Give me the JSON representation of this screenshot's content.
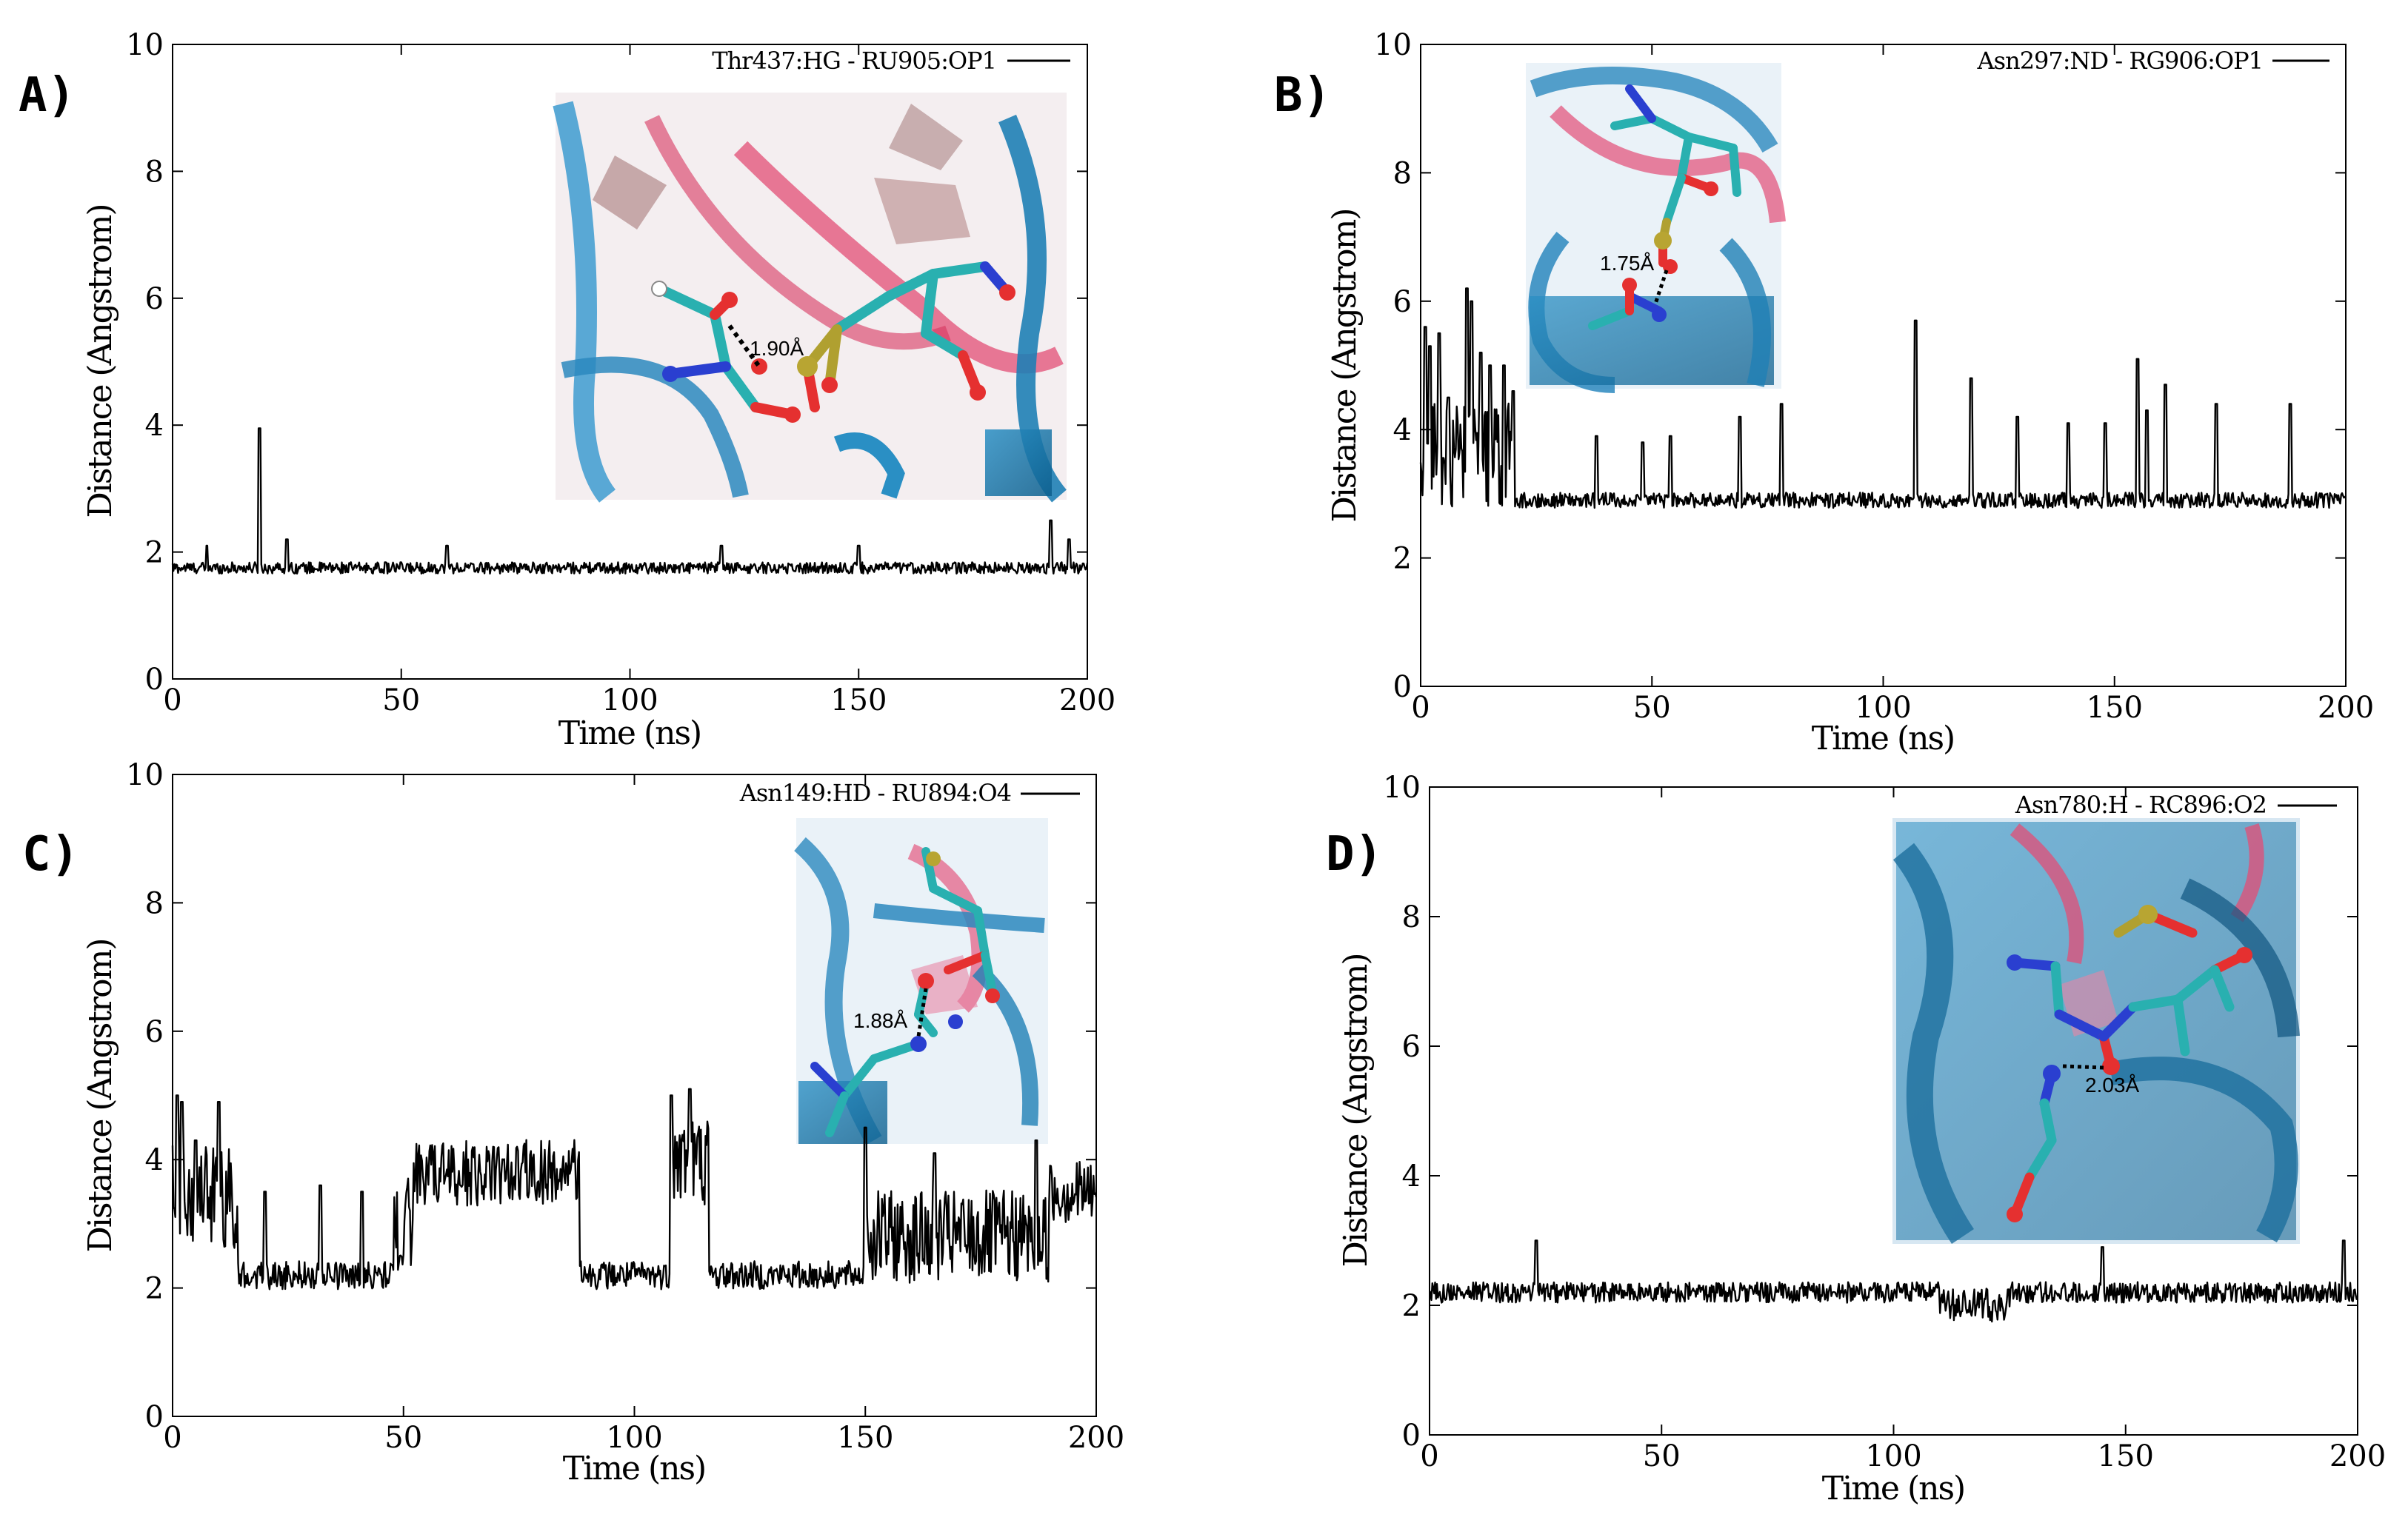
{
  "chart_data": [
    {
      "type": "line",
      "panel_label": "A)",
      "xlabel": "Time (ns)",
      "ylabel": "Distance (Angstrom)",
      "xlim": [
        0,
        200
      ],
      "ylim": [
        0,
        10
      ],
      "xticks": [
        "0",
        "50",
        "100",
        "150",
        "200"
      ],
      "yticks": [
        "0",
        "2",
        "4",
        "6",
        "8",
        "10"
      ],
      "legend": "Thr437:HG - RU905:OP1",
      "inset_measure": "1.90Å",
      "series": [
        {
          "name": "Thr437:HG - RU905:OP1",
          "baseline": 1.75,
          "noise": 0.09,
          "spikes": [
            [
              7.5,
              2.1
            ],
            [
              19,
              3.95
            ],
            [
              25,
              2.2
            ],
            [
              60,
              2.1
            ],
            [
              120,
              2.1
            ],
            [
              150,
              2.1
            ],
            [
              192,
              2.5
            ],
            [
              196,
              2.2
            ]
          ],
          "segments": []
        }
      ]
    },
    {
      "type": "line",
      "panel_label": "B)",
      "xlabel": "Time (ns)",
      "ylabel": "Distance (Angstrom)",
      "xlim": [
        0,
        200
      ],
      "ylim": [
        0,
        10
      ],
      "xticks": [
        "0",
        "50",
        "100",
        "150",
        "200"
      ],
      "yticks": [
        "0",
        "2",
        "4",
        "6",
        "8",
        "10"
      ],
      "legend": "Asn297:ND - RG906:OP1",
      "inset_measure": "1.75Å",
      "series": [
        {
          "name": "Asn297:ND - RG906:OP1",
          "baseline": 2.9,
          "noise": 0.12,
          "spikes": [
            [
              1,
              5.6
            ],
            [
              2,
              5.3
            ],
            [
              4,
              5.5
            ],
            [
              6,
              4.5
            ],
            [
              10,
              6.2
            ],
            [
              11,
              6.0
            ],
            [
              13,
              5.2
            ],
            [
              15,
              5.0
            ],
            [
              18,
              5.0
            ],
            [
              20,
              4.6
            ],
            [
              38,
              3.9
            ],
            [
              48,
              3.8
            ],
            [
              54,
              3.9
            ],
            [
              69,
              4.2
            ],
            [
              78,
              4.4
            ],
            [
              107,
              5.7
            ],
            [
              119,
              4.8
            ],
            [
              129,
              4.2
            ],
            [
              140,
              4.1
            ],
            [
              148,
              4.1
            ],
            [
              155,
              5.1
            ],
            [
              157,
              4.3
            ],
            [
              161,
              4.7
            ],
            [
              172,
              4.4
            ],
            [
              188,
              4.4
            ]
          ],
          "segments": [
            [
              0,
              20,
              3.6,
              0.7
            ]
          ]
        }
      ]
    },
    {
      "type": "line",
      "panel_label": "C)",
      "xlabel": "Time (ns)",
      "ylabel": "Distance (Angstrom)",
      "xlim": [
        0,
        200
      ],
      "ylim": [
        0,
        10
      ],
      "xticks": [
        "0",
        "50",
        "100",
        "150",
        "200"
      ],
      "yticks": [
        "0",
        "2",
        "4",
        "6",
        "8",
        "10"
      ],
      "legend": "Asn149:HD - RU894:O4",
      "inset_measure": "1.88Å",
      "series": [
        {
          "name": "Asn149:HD - RU894:O4",
          "baseline": 2.2,
          "noise": 0.22,
          "spikes": [
            [
              1,
              5.0
            ],
            [
              2,
              4.9
            ],
            [
              5,
              4.3
            ],
            [
              10,
              4.9
            ],
            [
              20,
              3.5
            ],
            [
              32,
              3.6
            ],
            [
              41,
              3.5
            ],
            [
              108,
              5.0
            ],
            [
              112,
              5.1
            ],
            [
              150,
              4.5
            ],
            [
              165,
              4.1
            ],
            [
              187,
              4.3
            ]
          ],
          "segments": [
            [
              0,
              14,
              3.4,
              0.6
            ],
            [
              52,
              88,
              3.8,
              0.3
            ],
            [
              48,
              52,
              3.0,
              0.5
            ],
            [
              108,
              116,
              4.0,
              0.5
            ],
            [
              150,
              200,
              2.8,
              0.5
            ],
            [
              190,
              200,
              3.5,
              0.3
            ]
          ]
        }
      ]
    },
    {
      "type": "line",
      "panel_label": "D)",
      "xlabel": "Time (ns)",
      "ylabel": "Distance (Angstrom)",
      "xlim": [
        0,
        200
      ],
      "ylim": [
        0,
        10
      ],
      "xticks": [
        "0",
        "50",
        "100",
        "150",
        "200"
      ],
      "yticks": [
        "0",
        "2",
        "4",
        "6",
        "8",
        "10"
      ],
      "legend": "Asn780:H - RC896:O2",
      "inset_measure": "2.03Å",
      "series": [
        {
          "name": "Asn780:H - RC896:O2",
          "baseline": 2.2,
          "noise": 0.16,
          "spikes": [
            [
              23,
              3.0
            ],
            [
              145,
              2.9
            ],
            [
              197,
              3.0
            ]
          ],
          "segments": [
            [
              110,
              125,
              2.0,
              0.1
            ]
          ]
        }
      ]
    }
  ]
}
